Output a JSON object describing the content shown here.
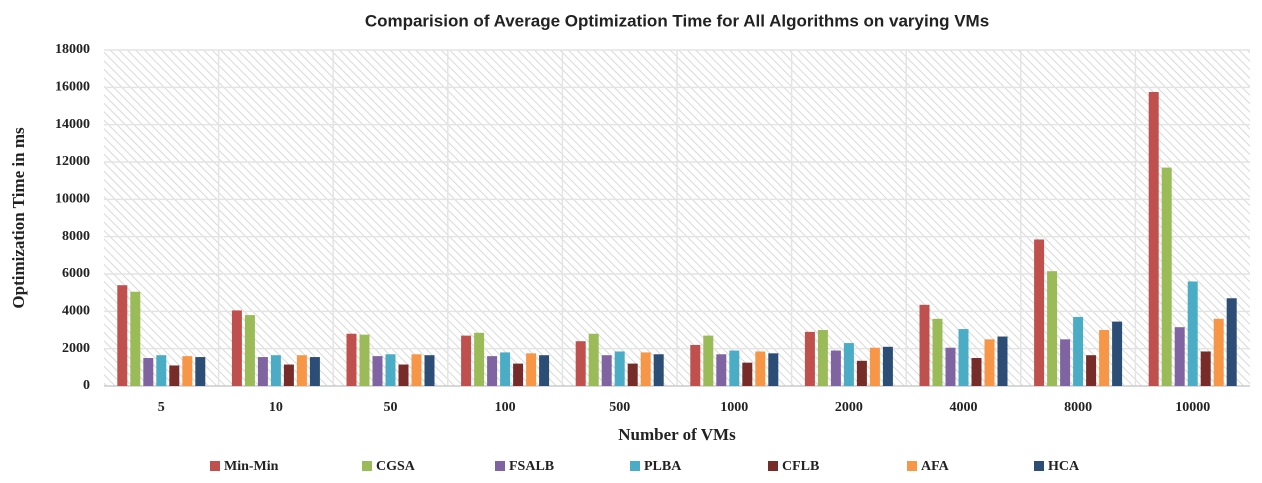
{
  "chart_data": {
    "type": "bar",
    "title": "Comparision of Average Optimization Time for All Algorithms on varying VMs",
    "x_label": "Number of VMs",
    "y_label": "Optimization Time in ms",
    "categories": [
      "5",
      "10",
      "50",
      "100",
      "500",
      "1000",
      "2000",
      "4000",
      "8000",
      "10000"
    ],
    "series": [
      {
        "name": "Min-Min",
        "color": "#c0504d",
        "values": [
          5400,
          4050,
          2800,
          2700,
          2400,
          2200,
          2900,
          4350,
          7850,
          15750
        ]
      },
      {
        "name": "CGSA",
        "color": "#9bbb59",
        "values": [
          5050,
          3800,
          2750,
          2850,
          2800,
          2700,
          3000,
          3600,
          6150,
          11700
        ]
      },
      {
        "name": "FSALB",
        "color": "#8064a2",
        "values": [
          1500,
          1550,
          1600,
          1600,
          1650,
          1700,
          1900,
          2050,
          2500,
          3150
        ]
      },
      {
        "name": "PLBA",
        "color": "#4bacc6",
        "values": [
          1650,
          1650,
          1700,
          1800,
          1850,
          1900,
          2300,
          3050,
          3700,
          5600
        ]
      },
      {
        "name": "CFLB",
        "color": "#772c2a",
        "values": [
          1100,
          1150,
          1150,
          1200,
          1200,
          1250,
          1350,
          1500,
          1650,
          1850
        ]
      },
      {
        "name": "AFA",
        "color": "#f79646",
        "values": [
          1600,
          1650,
          1700,
          1750,
          1800,
          1850,
          2050,
          2500,
          3000,
          3600
        ]
      },
      {
        "name": "HCA",
        "color": "#2c4d75",
        "values": [
          1550,
          1550,
          1650,
          1650,
          1700,
          1750,
          2100,
          2650,
          3450,
          4700
        ]
      }
    ],
    "ylim": [
      0,
      18000
    ],
    "yticks": [
      0,
      2000,
      4000,
      6000,
      8000,
      10000,
      12000,
      14000,
      16000,
      18000
    ],
    "grid": true,
    "legend": "bottom"
  }
}
